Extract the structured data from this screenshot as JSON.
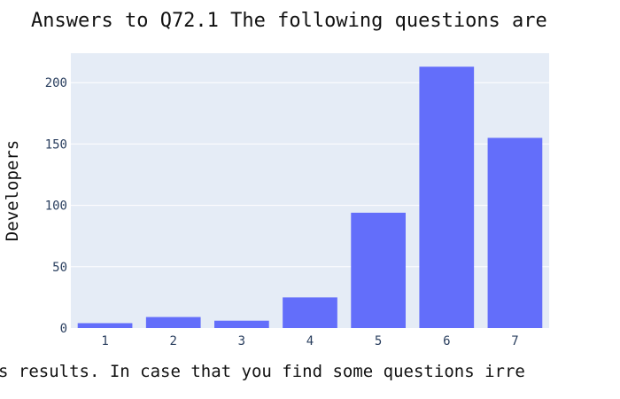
{
  "chart_data": {
    "type": "bar",
    "title": "Answers to Q72.1 The following questions are",
    "xlabel": "s results.  In case that you find some questions irre",
    "ylabel": "Developers",
    "categories": [
      "1",
      "2",
      "3",
      "4",
      "5",
      "6",
      "7"
    ],
    "values": [
      4,
      9,
      6,
      25,
      94,
      213,
      155
    ],
    "ylim": [
      0,
      224
    ],
    "yticks": [
      0,
      50,
      100,
      150,
      200
    ],
    "grid": true,
    "legend": "none",
    "colors": {
      "bar": "#636efa",
      "plot_bg": "#e5ecf6",
      "grid": "#ffffff",
      "tick_text": "#2a3f5f"
    }
  }
}
